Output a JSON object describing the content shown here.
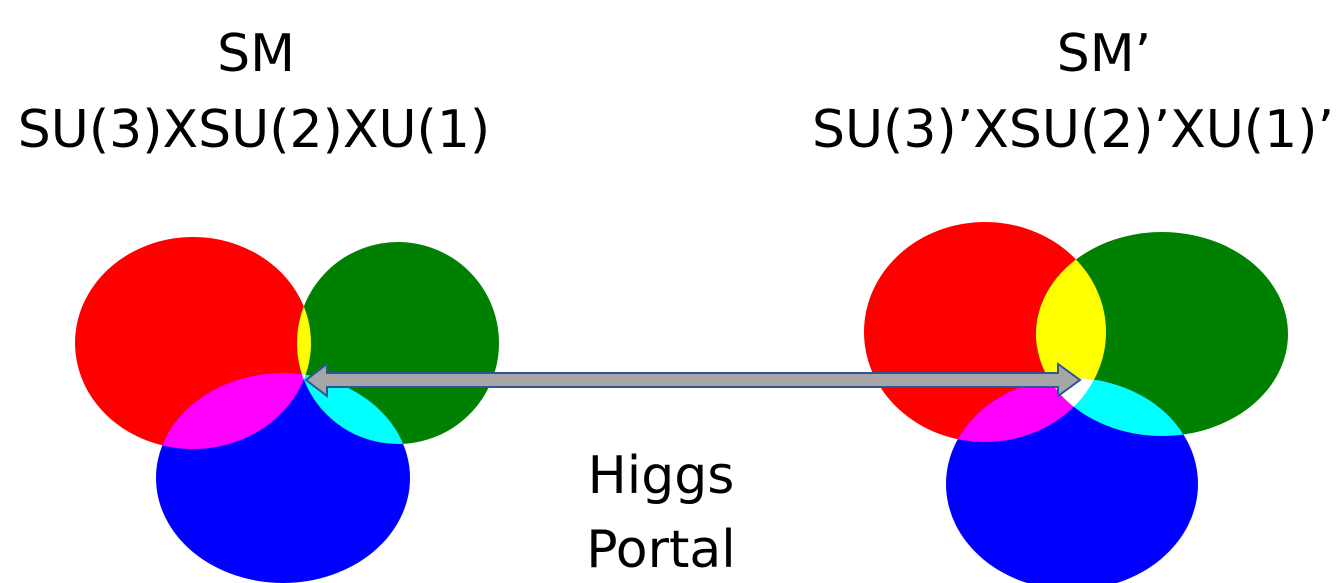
{
  "left_model": {
    "name": "SM",
    "group": "SU(3)XSU(2)XU(1)"
  },
  "right_model": {
    "name": "SM’",
    "group": "SU(3)’XSU(2)’XU(1)’"
  },
  "portal": {
    "line1": "Higgs",
    "line2": "Portal"
  },
  "colors": {
    "red": "#ff0000",
    "green": "#008000",
    "blue": "#0000ff",
    "yellow": "#ffff00",
    "magenta": "#ff00ff",
    "cyan": "#00ffff",
    "white": "#ffffff",
    "arrow_fill": "#a6a6a6",
    "arrow_stroke": "#2f5597"
  }
}
